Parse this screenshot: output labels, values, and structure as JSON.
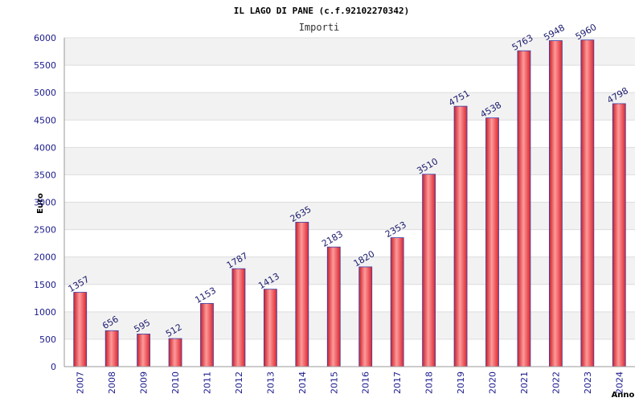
{
  "chart_data": {
    "type": "bar",
    "title": "IL LAGO DI PANE (c.f.92102270342)",
    "subtitle": "Importi",
    "ylabel": "Euro",
    "xlabel": "Anno",
    "categories": [
      "2007",
      "2008",
      "2009",
      "2010",
      "2011",
      "2012",
      "2013",
      "2014",
      "2015",
      "2016",
      "2017",
      "2018",
      "2019",
      "2020",
      "2021",
      "2022",
      "2023",
      "2024"
    ],
    "values": [
      1357,
      656,
      595,
      512,
      1153,
      1787,
      1413,
      2635,
      2183,
      1820,
      2353,
      3510,
      4751,
      4538,
      5763,
      5948,
      5960,
      4798
    ],
    "value_labels": [
      "1357",
      "656",
      "595",
      "512",
      "1153",
      "1787",
      "1413",
      "2635",
      "2183",
      "1820",
      "2353",
      "3510",
      "4751",
      "4538",
      "5763",
      "5948",
      "5960",
      "4798"
    ],
    "ylim": [
      0,
      6000
    ],
    "yticks": [
      0,
      500,
      1000,
      1500,
      2000,
      2500,
      3000,
      3500,
      4000,
      4500,
      5000,
      5500,
      6000
    ],
    "grid": true,
    "colors": {
      "bar_fill": "#e8323a",
      "bar_highlight": "#ff8a8a",
      "bar_edge": "#3b3fa8",
      "band": "#f2f2f2",
      "tick_text": "#1a1a8c"
    }
  }
}
